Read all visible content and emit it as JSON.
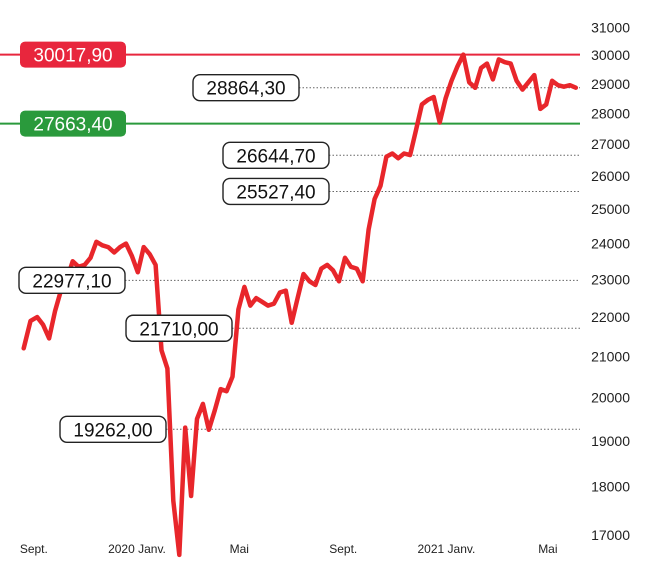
{
  "chart_data": {
    "type": "line",
    "series": [
      {
        "color": "#e8262b",
        "points": [
          [
            "2019-08-20",
            21200
          ],
          [
            "2019-08-28",
            21900
          ],
          [
            "2019-09-05",
            22000
          ],
          [
            "2019-09-12",
            21800
          ],
          [
            "2019-09-19",
            21450
          ],
          [
            "2019-09-26",
            22150
          ],
          [
            "2019-10-03",
            22700
          ],
          [
            "2019-10-10",
            23000
          ],
          [
            "2019-10-17",
            23500
          ],
          [
            "2019-10-24",
            23350
          ],
          [
            "2019-10-31",
            23400
          ],
          [
            "2019-11-07",
            23600
          ],
          [
            "2019-11-14",
            24050
          ],
          [
            "2019-11-21",
            23950
          ],
          [
            "2019-11-28",
            23900
          ],
          [
            "2019-12-05",
            23750
          ],
          [
            "2019-12-12",
            23900
          ],
          [
            "2019-12-19",
            24000
          ],
          [
            "2019-12-26",
            23650
          ],
          [
            "2020-01-02",
            23200
          ],
          [
            "2020-01-09",
            23900
          ],
          [
            "2020-01-16",
            23700
          ],
          [
            "2020-01-23",
            23400
          ],
          [
            "2020-01-30",
            21150
          ],
          [
            "2020-02-06",
            20700
          ],
          [
            "2020-02-13",
            17700
          ],
          [
            "2020-02-20",
            16600
          ],
          [
            "2020-02-27",
            19300
          ],
          [
            "2020-03-05",
            17800
          ],
          [
            "2020-03-12",
            19500
          ],
          [
            "2020-03-19",
            19850
          ],
          [
            "2020-03-26",
            19250
          ],
          [
            "2020-04-02",
            19700
          ],
          [
            "2020-04-09",
            20200
          ],
          [
            "2020-04-16",
            20150
          ],
          [
            "2020-04-23",
            20500
          ],
          [
            "2020-04-30",
            22200
          ],
          [
            "2020-05-07",
            22800
          ],
          [
            "2020-05-14",
            22300
          ],
          [
            "2020-05-21",
            22500
          ],
          [
            "2020-05-28",
            22400
          ],
          [
            "2020-06-04",
            22300
          ],
          [
            "2020-06-11",
            22350
          ],
          [
            "2020-06-18",
            22650
          ],
          [
            "2020-06-25",
            22700
          ],
          [
            "2020-07-02",
            21850
          ],
          [
            "2020-07-09",
            22500
          ],
          [
            "2020-07-16",
            23150
          ],
          [
            "2020-07-23",
            22950
          ],
          [
            "2020-07-30",
            22850
          ],
          [
            "2020-08-06",
            23300
          ],
          [
            "2020-08-13",
            23400
          ],
          [
            "2020-08-20",
            23250
          ],
          [
            "2020-08-27",
            22950
          ],
          [
            "2020-09-03",
            23600
          ],
          [
            "2020-09-10",
            23350
          ],
          [
            "2020-09-17",
            23300
          ],
          [
            "2020-09-24",
            22950
          ],
          [
            "2020-10-01",
            24400
          ],
          [
            "2020-10-08",
            25300
          ],
          [
            "2020-10-15",
            25700
          ],
          [
            "2020-10-22",
            26600
          ],
          [
            "2020-10-29",
            26700
          ],
          [
            "2020-11-05",
            26550
          ],
          [
            "2020-11-12",
            26700
          ],
          [
            "2020-11-19",
            26650
          ],
          [
            "2020-11-26",
            27450
          ],
          [
            "2020-12-03",
            28300
          ],
          [
            "2020-12-10",
            28450
          ],
          [
            "2020-12-17",
            28550
          ],
          [
            "2020-12-24",
            27700
          ],
          [
            "2020-12-31",
            28500
          ],
          [
            "2021-01-07",
            29100
          ],
          [
            "2021-01-14",
            29600
          ],
          [
            "2021-01-21",
            30017.9
          ],
          [
            "2021-01-28",
            29050
          ],
          [
            "2021-02-04",
            28860
          ],
          [
            "2021-02-11",
            29550
          ],
          [
            "2021-02-18",
            29700
          ],
          [
            "2021-02-25",
            29150
          ],
          [
            "2021-03-04",
            29850
          ],
          [
            "2021-03-11",
            29750
          ],
          [
            "2021-03-18",
            29700
          ],
          [
            "2021-03-25",
            29100
          ],
          [
            "2021-04-01",
            28800
          ],
          [
            "2021-04-08",
            29050
          ],
          [
            "2021-04-15",
            29300
          ],
          [
            "2021-04-22",
            28150
          ],
          [
            "2021-04-29",
            28300
          ],
          [
            "2021-05-06",
            29100
          ],
          [
            "2021-05-13",
            28950
          ],
          [
            "2021-05-20",
            28900
          ],
          [
            "2021-05-27",
            28950
          ],
          [
            "2021-06-03",
            28864.3
          ]
        ]
      }
    ],
    "y_ticks": [
      "31000",
      "30000",
      "29000",
      "28000",
      "27000",
      "26000",
      "25000",
      "24000",
      "23000",
      "22000",
      "21000",
      "20000",
      "19000",
      "18000",
      "17000"
    ],
    "y_tick_values": [
      31000,
      30000,
      29000,
      28000,
      27000,
      26000,
      25000,
      24000,
      23000,
      22000,
      21000,
      20000,
      19000,
      18000,
      17000
    ],
    "ylim": [
      16500,
      31200
    ],
    "y_scale": "log",
    "x_ticks": [
      {
        "label": "Sept.",
        "date": "2019-09-01"
      },
      {
        "label": "2020 Janv.",
        "date": "2020-01-01"
      },
      {
        "label": "Mai",
        "date": "2020-05-01"
      },
      {
        "label": "Sept.",
        "date": "2020-09-01"
      },
      {
        "label": "2021 Janv.",
        "date": "2021-01-01"
      },
      {
        "label": "Mai",
        "date": "2021-05-01"
      }
    ],
    "xlim": [
      "2019-08-18",
      "2021-06-08"
    ],
    "reference_lines": [
      {
        "value": 30017.9,
        "label": "30017,90",
        "style": "solid",
        "color": "#e8263d"
      },
      {
        "value": 27663.4,
        "label": "27663,40",
        "style": "solid",
        "color": "#2a9a3c"
      }
    ],
    "annotations": [
      {
        "value": 28864.3,
        "label": "28864,30"
      },
      {
        "value": 26644.7,
        "label": "26644,70"
      },
      {
        "value": 25527.4,
        "label": "25527,40"
      },
      {
        "value": 22977.1,
        "label": "22977,10"
      },
      {
        "value": 21710.0,
        "label": "21710,00"
      },
      {
        "value": 19262.0,
        "label": "19262,00"
      }
    ]
  }
}
